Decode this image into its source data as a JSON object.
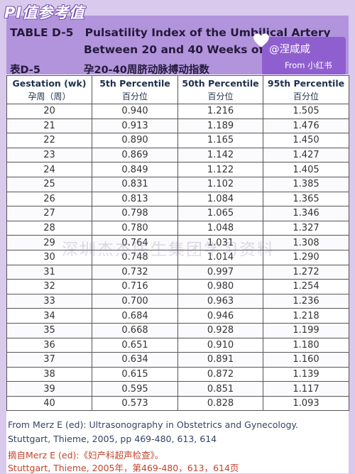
{
  "tag": "PI值参考值",
  "header": {
    "title_line1": "TABLE D-5   Pulsatility Index of the Umbilical Artery",
    "title_line2": "Between 20 and 40 Weeks of Gestation",
    "label_cn": "表D-5",
    "title_cn": "孕20-40周脐动脉搏动指数"
  },
  "watermark": {
    "handle": "@涅咸咸",
    "source": "From 小红书",
    "scan_text": "深圳杰杰医生集团学习资料"
  },
  "table": {
    "headers": [
      {
        "en": "Gestation (wk)",
        "zh": "孕周（周）"
      },
      {
        "en": "5th Percentile",
        "zh": "百分位"
      },
      {
        "en": "50th Percentile",
        "zh": "百分位"
      },
      {
        "en": "95th Percentile",
        "zh": "百分位"
      }
    ],
    "rows": [
      [
        "20",
        "0.940",
        "1.216",
        "1.505"
      ],
      [
        "21",
        "0.913",
        "1.189",
        "1.476"
      ],
      [
        "22",
        "0.890",
        "1.165",
        "1.450"
      ],
      [
        "23",
        "0.869",
        "1.142",
        "1.427"
      ],
      [
        "24",
        "0.849",
        "1.122",
        "1.405"
      ],
      [
        "25",
        "0.831",
        "1.102",
        "1.385"
      ],
      [
        "26",
        "0.813",
        "1.084",
        "1.365"
      ],
      [
        "27",
        "0.798",
        "1.065",
        "1.346"
      ],
      [
        "28",
        "0.780",
        "1.048",
        "1.327"
      ],
      [
        "29",
        "0.764",
        "1.031",
        "1.308"
      ],
      [
        "30",
        "0.748",
        "1.014",
        "1.290"
      ],
      [
        "31",
        "0.732",
        "0.997",
        "1.272"
      ],
      [
        "32",
        "0.716",
        "0.980",
        "1.254"
      ],
      [
        "33",
        "0.700",
        "0.963",
        "1.236"
      ],
      [
        "34",
        "0.684",
        "0.946",
        "1.218"
      ],
      [
        "35",
        "0.668",
        "0.928",
        "1.199"
      ],
      [
        "36",
        "0.651",
        "0.910",
        "1.180"
      ],
      [
        "37",
        "0.634",
        "0.891",
        "1.160"
      ],
      [
        "38",
        "0.615",
        "0.872",
        "1.139"
      ],
      [
        "39",
        "0.595",
        "0.851",
        "1.117"
      ],
      [
        "40",
        "0.573",
        "0.828",
        "1.093"
      ]
    ]
  },
  "footer": {
    "ref_line1": "From Merz E (ed): Ultrasonography in Obstetrics and Gynecology.",
    "ref_line2": "Stuttgart, Thieme, 2005, pp 469-480, 613, 614",
    "ref_cn_line1": "摘自Merz E (ed):《妇产科超声检查》。",
    "ref_cn_line2": "Stuttgart, Thieme, 2005年，第469-480，613，614页"
  },
  "colors": {
    "header_bg": "#b294dd",
    "watermark_bg": "#8f5fcf",
    "page_bg": "#d9c9ec",
    "cn_ref_text": "#c4432c"
  },
  "icons": [
    "heart-icon"
  ]
}
